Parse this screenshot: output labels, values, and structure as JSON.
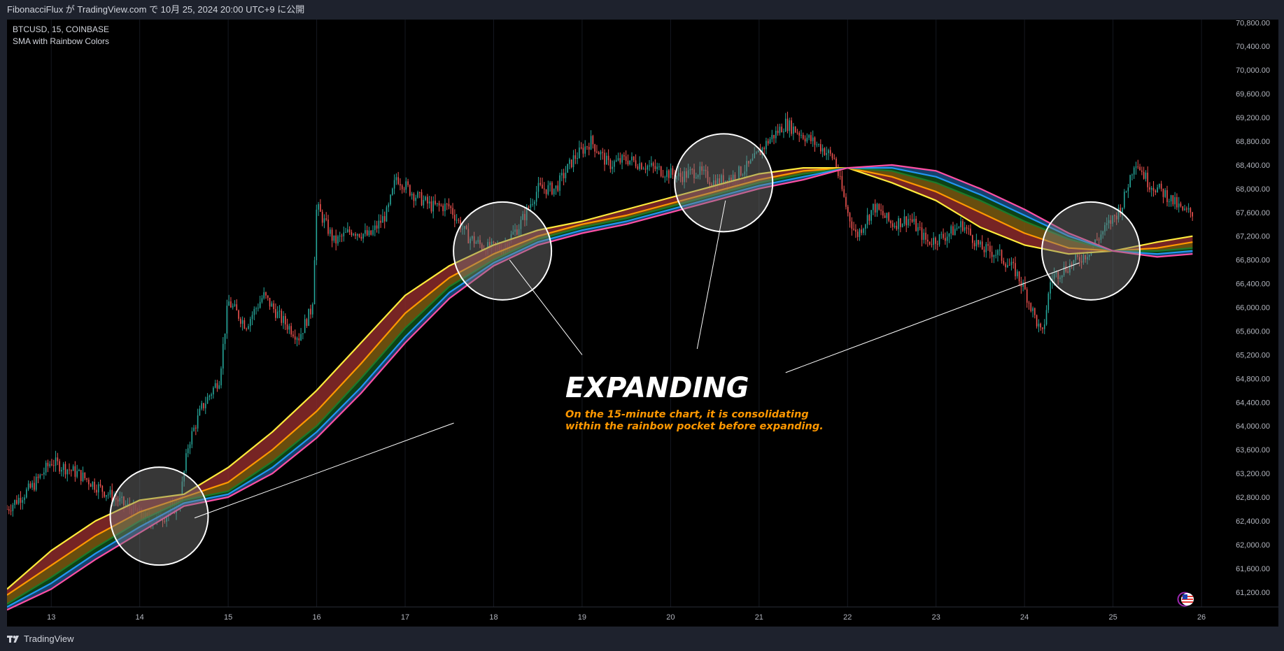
{
  "header": {
    "publish_line": "FibonacciFlux が TradingView.com で 10月 25, 2024 20:00 UTC+9 に公開"
  },
  "legend": {
    "symbol_line": "BTCUSD, 15, COINBASE",
    "indicator_name": "SMA with Rainbow Colors"
  },
  "annotation": {
    "title": "EXPANDING",
    "line1": "On the 15-minute chart, it is consolidating",
    "line2": "within the rainbow pocket before expanding."
  },
  "footer": {
    "brand": "TradingView"
  },
  "colors": {
    "background": "#000000",
    "frame": "#1e222d",
    "candle_up": "#26a69a",
    "candle_down": "#ef5350",
    "band_yellow": "#ffeb3b",
    "band_orange": "#ff9800",
    "band_fill_red": "#8b2a2a",
    "band_green": "#1b7a2a",
    "band_blue": "#2196f3",
    "band_pink": "#ff4fa3",
    "annotation_text": "#ffffff",
    "annotation_sub": "#ff9800"
  },
  "chart_data": {
    "type": "line",
    "price_axis_ticks": [
      "70,800.00",
      "70,400.00",
      "70,000.00",
      "69,600.00",
      "69,200.00",
      "68,800.00",
      "68,400.00",
      "68,000.00",
      "67,600.00",
      "67,200.00",
      "66,800.00",
      "66,400.00",
      "66,000.00",
      "65,600.00",
      "65,200.00",
      "64,800.00",
      "64,400.00",
      "64,000.00",
      "63,600.00",
      "63,200.00",
      "62,800.00",
      "62,400.00",
      "62,000.00",
      "61,600.00",
      "61,200.00"
    ],
    "ylim": [
      60950,
      70850
    ],
    "x_ticks": [
      "13",
      "14",
      "15",
      "16",
      "17",
      "18",
      "19",
      "20",
      "21",
      "22",
      "23",
      "24",
      "25",
      "26"
    ],
    "x_tick_days": [
      13,
      14,
      15,
      16,
      17,
      18,
      19,
      20,
      21,
      22,
      23,
      24,
      25,
      26
    ],
    "xlim": [
      12.5,
      26.3
    ],
    "price_path": [
      [
        12.5,
        62600
      ],
      [
        12.8,
        63000
      ],
      [
        13.0,
        63400
      ],
      [
        13.3,
        63200
      ],
      [
        13.6,
        62900
      ],
      [
        13.9,
        62600
      ],
      [
        14.1,
        62400
      ],
      [
        14.3,
        62500
      ],
      [
        14.45,
        62700
      ],
      [
        14.55,
        63700
      ],
      [
        14.7,
        64300
      ],
      [
        14.9,
        64800
      ],
      [
        15.0,
        66100
      ],
      [
        15.2,
        65700
      ],
      [
        15.4,
        66200
      ],
      [
        15.6,
        65800
      ],
      [
        15.8,
        65500
      ],
      [
        15.95,
        66000
      ],
      [
        16.0,
        67700
      ],
      [
        16.2,
        67100
      ],
      [
        16.4,
        67300
      ],
      [
        16.6,
        67200
      ],
      [
        16.8,
        67600
      ],
      [
        16.9,
        68200
      ],
      [
        17.1,
        67900
      ],
      [
        17.3,
        67700
      ],
      [
        17.5,
        67700
      ],
      [
        17.7,
        67200
      ],
      [
        17.9,
        67000
      ],
      [
        18.1,
        67000
      ],
      [
        18.3,
        67400
      ],
      [
        18.5,
        68000
      ],
      [
        18.7,
        68000
      ],
      [
        18.9,
        68500
      ],
      [
        19.1,
        68800
      ],
      [
        19.3,
        68400
      ],
      [
        19.5,
        68500
      ],
      [
        19.7,
        68400
      ],
      [
        19.9,
        68300
      ],
      [
        20.1,
        68200
      ],
      [
        20.3,
        68300
      ],
      [
        20.5,
        68100
      ],
      [
        20.7,
        68200
      ],
      [
        20.9,
        68400
      ],
      [
        21.1,
        68800
      ],
      [
        21.3,
        69100
      ],
      [
        21.5,
        68900
      ],
      [
        21.7,
        68700
      ],
      [
        21.85,
        68500
      ],
      [
        22.0,
        67600
      ],
      [
        22.1,
        67200
      ],
      [
        22.3,
        67700
      ],
      [
        22.5,
        67400
      ],
      [
        22.7,
        67500
      ],
      [
        22.9,
        67100
      ],
      [
        23.1,
        67200
      ],
      [
        23.3,
        67400
      ],
      [
        23.5,
        67000
      ],
      [
        23.7,
        66900
      ],
      [
        23.9,
        66600
      ],
      [
        24.0,
        66300
      ],
      [
        24.1,
        65900
      ],
      [
        24.2,
        65500
      ],
      [
        24.3,
        66500
      ],
      [
        24.5,
        66700
      ],
      [
        24.7,
        66900
      ],
      [
        24.9,
        67300
      ],
      [
        25.1,
        67700
      ],
      [
        25.25,
        68500
      ],
      [
        25.4,
        68100
      ],
      [
        25.6,
        67900
      ],
      [
        25.8,
        67600
      ]
    ],
    "series": [
      {
        "name": "",
        "color": "#ffeb3b",
        "values": [
          [
            12.5,
            61250
          ],
          [
            13.0,
            61900
          ],
          [
            13.5,
            62400
          ],
          [
            14.0,
            62750
          ],
          [
            14.5,
            62850
          ],
          [
            15.0,
            63300
          ],
          [
            15.5,
            63900
          ],
          [
            16.0,
            64600
          ],
          [
            16.5,
            65400
          ],
          [
            17.0,
            66200
          ],
          [
            17.5,
            66700
          ],
          [
            18.0,
            67050
          ],
          [
            18.5,
            67300
          ],
          [
            19.0,
            67450
          ],
          [
            19.5,
            67650
          ],
          [
            20.0,
            67850
          ],
          [
            20.5,
            68050
          ],
          [
            21.0,
            68250
          ],
          [
            21.5,
            68350
          ],
          [
            22.0,
            68350
          ],
          [
            22.5,
            68100
          ],
          [
            23.0,
            67800
          ],
          [
            23.5,
            67350
          ],
          [
            24.0,
            67050
          ],
          [
            24.5,
            66900
          ],
          [
            25.0,
            66950
          ],
          [
            25.5,
            67100
          ],
          [
            25.9,
            67200
          ]
        ]
      },
      {
        "name": "",
        "color": "#ff9800",
        "values": [
          [
            12.5,
            61150
          ],
          [
            13.0,
            61650
          ],
          [
            13.5,
            62150
          ],
          [
            14.0,
            62550
          ],
          [
            14.5,
            62800
          ],
          [
            15.0,
            63050
          ],
          [
            15.5,
            63600
          ],
          [
            16.0,
            64250
          ],
          [
            16.5,
            65050
          ],
          [
            17.0,
            65900
          ],
          [
            17.5,
            66500
          ],
          [
            18.0,
            66900
          ],
          [
            18.5,
            67200
          ],
          [
            19.0,
            67400
          ],
          [
            19.5,
            67550
          ],
          [
            20.0,
            67750
          ],
          [
            20.5,
            67950
          ],
          [
            21.0,
            68150
          ],
          [
            21.5,
            68300
          ],
          [
            22.0,
            68350
          ],
          [
            22.5,
            68200
          ],
          [
            23.0,
            67950
          ],
          [
            23.5,
            67600
          ],
          [
            24.0,
            67250
          ],
          [
            24.5,
            67000
          ],
          [
            25.0,
            66950
          ],
          [
            25.5,
            67000
          ],
          [
            25.9,
            67100
          ]
        ]
      },
      {
        "name": "",
        "color": "#1b7a2a",
        "values": [
          [
            12.5,
            61000
          ],
          [
            13.0,
            61450
          ],
          [
            13.5,
            61950
          ],
          [
            14.0,
            62400
          ],
          [
            14.5,
            62750
          ],
          [
            15.0,
            62900
          ],
          [
            15.5,
            63400
          ],
          [
            16.0,
            64000
          ],
          [
            16.5,
            64800
          ],
          [
            17.0,
            65650
          ],
          [
            17.5,
            66350
          ],
          [
            18.0,
            66800
          ],
          [
            18.5,
            67150
          ],
          [
            19.0,
            67350
          ],
          [
            19.5,
            67500
          ],
          [
            20.0,
            67700
          ],
          [
            20.5,
            67900
          ],
          [
            21.0,
            68100
          ],
          [
            21.5,
            68250
          ],
          [
            22.0,
            68350
          ],
          [
            22.5,
            68300
          ],
          [
            23.0,
            68100
          ],
          [
            23.5,
            67800
          ],
          [
            24.0,
            67450
          ],
          [
            24.5,
            67150
          ],
          [
            25.0,
            66950
          ],
          [
            25.5,
            66950
          ],
          [
            25.9,
            67000
          ]
        ]
      },
      {
        "name": "",
        "color": "#2196f3",
        "values": [
          [
            12.5,
            60950
          ],
          [
            13.0,
            61350
          ],
          [
            13.5,
            61850
          ],
          [
            14.0,
            62300
          ],
          [
            14.5,
            62700
          ],
          [
            15.0,
            62850
          ],
          [
            15.5,
            63300
          ],
          [
            16.0,
            63900
          ],
          [
            16.5,
            64650
          ],
          [
            17.0,
            65500
          ],
          [
            17.5,
            66250
          ],
          [
            18.0,
            66750
          ],
          [
            18.5,
            67100
          ],
          [
            19.0,
            67300
          ],
          [
            19.5,
            67450
          ],
          [
            20.0,
            67650
          ],
          [
            20.5,
            67850
          ],
          [
            21.0,
            68050
          ],
          [
            21.5,
            68200
          ],
          [
            22.0,
            68350
          ],
          [
            22.5,
            68350
          ],
          [
            23.0,
            68200
          ],
          [
            23.5,
            67900
          ],
          [
            24.0,
            67550
          ],
          [
            24.5,
            67200
          ],
          [
            25.0,
            66950
          ],
          [
            25.5,
            66900
          ],
          [
            25.9,
            66950
          ]
        ]
      },
      {
        "name": "",
        "color": "#ff4fa3",
        "values": [
          [
            12.5,
            60900
          ],
          [
            13.0,
            61250
          ],
          [
            13.5,
            61750
          ],
          [
            14.0,
            62200
          ],
          [
            14.5,
            62650
          ],
          [
            15.0,
            62800
          ],
          [
            15.5,
            63200
          ],
          [
            16.0,
            63800
          ],
          [
            16.5,
            64550
          ],
          [
            17.0,
            65400
          ],
          [
            17.5,
            66150
          ],
          [
            18.0,
            66700
          ],
          [
            18.5,
            67050
          ],
          [
            19.0,
            67250
          ],
          [
            19.5,
            67400
          ],
          [
            20.0,
            67600
          ],
          [
            20.5,
            67800
          ],
          [
            21.0,
            68000
          ],
          [
            21.5,
            68150
          ],
          [
            22.0,
            68350
          ],
          [
            22.5,
            68400
          ],
          [
            23.0,
            68300
          ],
          [
            23.5,
            68000
          ],
          [
            24.0,
            67650
          ],
          [
            24.5,
            67250
          ],
          [
            25.0,
            66950
          ],
          [
            25.5,
            66850
          ],
          [
            25.9,
            66900
          ]
        ]
      }
    ],
    "highlight_circles": [
      {
        "day": 14.22,
        "price": 62480
      },
      {
        "day": 18.1,
        "price": 66950
      },
      {
        "day": 20.6,
        "price": 68100
      },
      {
        "day": 24.75,
        "price": 66950
      }
    ],
    "pointer_lines": [
      {
        "from_day": 14.62,
        "from_price": 62450,
        "to_day": 17.55,
        "to_price": 64050
      },
      {
        "from_day": 18.18,
        "from_price": 66800,
        "to_day": 19.0,
        "to_price": 65200
      },
      {
        "from_day": 20.62,
        "from_price": 67800,
        "to_day": 20.3,
        "to_price": 65300
      },
      {
        "from_day": 24.62,
        "from_price": 66750,
        "to_day": 21.3,
        "to_price": 64900
      }
    ]
  }
}
